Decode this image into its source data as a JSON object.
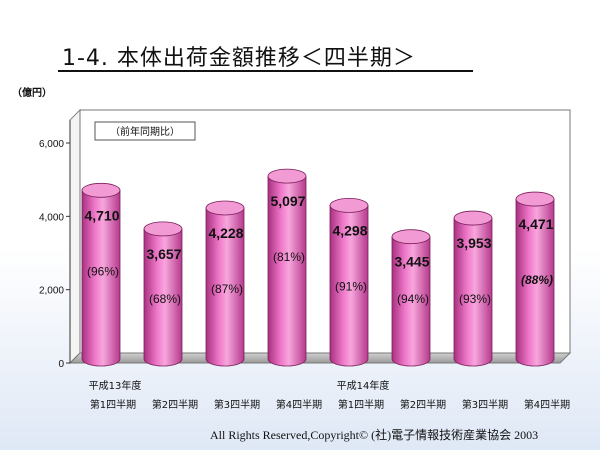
{
  "title": "1-4. 本体出荷金額推移＜四半期＞",
  "footer": "All Rights Reserved,Copyright© (社)電子情報技術産業協会 2003",
  "chart_data": {
    "type": "bar",
    "style": "3d-cylinder",
    "bar_color": "#e879c4",
    "bg_color": "#ffffff",
    "floor_color": "#c0c0c0",
    "unit_label": "（億円）",
    "note": "（前年同期比）",
    "ylim": [
      0,
      6000
    ],
    "yticks": [
      0,
      2000,
      4000,
      6000
    ],
    "ytick_labels": [
      "0",
      "2,000",
      "4,000",
      "6,000"
    ],
    "grid": false,
    "categories": [
      {
        "year": "平成13年度",
        "quarter": "第1四半期"
      },
      {
        "year": "",
        "quarter": "第2四半期"
      },
      {
        "year": "",
        "quarter": "第3四半期"
      },
      {
        "year": "",
        "quarter": "第4四半期"
      },
      {
        "year": "平成14年度",
        "quarter": "第1四半期"
      },
      {
        "year": "",
        "quarter": "第2四半期"
      },
      {
        "year": "",
        "quarter": "第3四半期"
      },
      {
        "year": "",
        "quarter": "第4四半期"
      }
    ],
    "values": [
      4710,
      3657,
      4228,
      5097,
      4298,
      3445,
      3953,
      4471
    ],
    "value_labels": [
      "4,710",
      "3,657",
      "4,228",
      "5,097",
      "4,298",
      "3,445",
      "3,953",
      "4,471"
    ],
    "yoy_labels": [
      "(96%)",
      "(68%)",
      "(87%)",
      "(81%)",
      "(91%)",
      "(94%)",
      "(93%)",
      "(88%)"
    ],
    "yoy_italic": [
      false,
      false,
      false,
      false,
      false,
      false,
      false,
      true
    ]
  }
}
